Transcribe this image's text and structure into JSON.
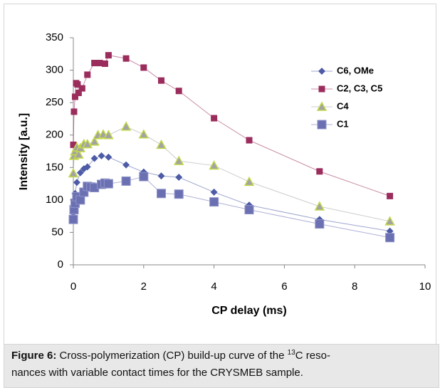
{
  "chart_data": {
    "type": "scatter-line",
    "xlabel": "CP delay (ms)",
    "ylabel": "Intensity [a.u.]",
    "xlim": [
      0,
      10
    ],
    "xticks": [
      0,
      2,
      4,
      6,
      8,
      10
    ],
    "ylim": [
      0,
      350
    ],
    "yticks": [
      0,
      50,
      100,
      150,
      200,
      250,
      300,
      350
    ],
    "grid": false,
    "legend": "upper right",
    "series": [
      {
        "name": "C6, OMe",
        "color": "#4e5ba6",
        "marker": "diamond",
        "x": [
          0,
          0.02,
          0.05,
          0.1,
          0.2,
          0.3,
          0.4,
          0.6,
          0.8,
          1,
          1.5,
          2,
          2.5,
          3,
          4,
          5,
          7,
          9
        ],
        "values": [
          80,
          100,
          110,
          127,
          142,
          148,
          151,
          164,
          168,
          166,
          154,
          143,
          137,
          135,
          112,
          92,
          70,
          52
        ]
      },
      {
        "name": "C2, C3, C5",
        "color": "#9b2d5c",
        "marker": "square",
        "x": [
          0,
          0.02,
          0.05,
          0.08,
          0.12,
          0.15,
          0.25,
          0.4,
          0.6,
          0.75,
          0.9,
          1,
          1.5,
          2,
          2.5,
          3,
          4,
          5,
          7,
          9
        ],
        "values": [
          185,
          236,
          259,
          280,
          278,
          265,
          272,
          293,
          311,
          311,
          310,
          323,
          318,
          304,
          284,
          268,
          226,
          192,
          144,
          106
        ]
      },
      {
        "name": "C4",
        "color": "#a3a3a3",
        "marker": "triangle",
        "x": [
          0,
          0.02,
          0.05,
          0.1,
          0.15,
          0.2,
          0.3,
          0.4,
          0.6,
          0.7,
          0.85,
          1,
          1.5,
          2,
          2.5,
          3,
          4,
          5,
          7,
          9
        ],
        "values": [
          141,
          168,
          175,
          181,
          170,
          180,
          186,
          186,
          190,
          200,
          201,
          200,
          213,
          201,
          185,
          160,
          153,
          128,
          90,
          67
        ]
      },
      {
        "name": "C1",
        "color": "#6b70b3",
        "marker": "big-square",
        "x": [
          0,
          0.02,
          0.05,
          0.1,
          0.2,
          0.3,
          0.4,
          0.5,
          0.6,
          0.8,
          0.9,
          1,
          1.5,
          2,
          2.5,
          3,
          4,
          5,
          7,
          9
        ],
        "values": [
          70,
          85,
          95,
          105,
          100,
          112,
          121,
          120,
          119,
          124,
          126,
          125,
          129,
          136,
          110,
          109,
          97,
          85,
          63,
          42
        ]
      }
    ]
  },
  "caption": {
    "label": "Figure 6:",
    "text_before": " Cross-polymerization (CP) build-up curve of the ",
    "superscript": "13",
    "text_after": "C reso-",
    "line2": "nances with variable contact times for the CRYSMEB sample."
  }
}
